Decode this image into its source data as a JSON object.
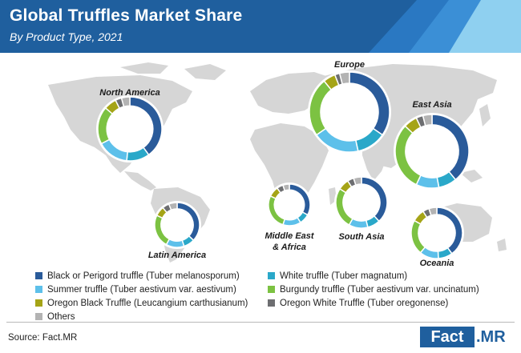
{
  "header": {
    "title": "Global Truffles Market Share",
    "subtitle": "By Product Type, 2021"
  },
  "chart_data": {
    "type": "pie",
    "variant": "donut",
    "title": "Global Truffles Market Share",
    "subtitle": "By Product Type, 2021",
    "categories": [
      "Black or Perigord truffle (Tuber melanosporum)",
      "White truffle (Tuber magnatum)",
      "Summer truffle (Tuber aestivum var. aestivum)",
      "Burgundy truffle (Tuber aestivum var. uncinatum)",
      "Oregon Black Truffle (Leucangium carthusianum)",
      "Oregon White Truffle (Tuber oregonense)",
      "Others"
    ],
    "colors": [
      "#2a5b9a",
      "#2aa8c9",
      "#5dc0ea",
      "#7cc242",
      "#a5a417",
      "#6d6e71",
      "#b3b3b3"
    ],
    "legend_position": "bottom",
    "regions": [
      {
        "name": "North America",
        "label_lines": [
          "North America"
        ],
        "values": [
          38,
          11,
          15,
          18,
          6,
          3,
          4
        ]
      },
      {
        "name": "Europe",
        "label_lines": [
          "Europe"
        ],
        "values": [
          35,
          12,
          19,
          24,
          5,
          2,
          4
        ]
      },
      {
        "name": "East Asia",
        "label_lines": [
          "East Asia"
        ],
        "values": [
          39,
          8,
          10,
          30,
          6,
          3,
          4
        ]
      },
      {
        "name": "Latin America",
        "label_lines": [
          "Latin America"
        ],
        "values": [
          37,
          8,
          13,
          24,
          7,
          5,
          6
        ]
      },
      {
        "name": "Middle East & Africa",
        "label_lines": [
          "Middle East",
          "& Africa"
        ],
        "values": [
          33,
          8,
          14,
          27,
          8,
          5,
          5
        ]
      },
      {
        "name": "South Asia",
        "label_lines": [
          "South Asia"
        ],
        "values": [
          38,
          8,
          12,
          26,
          7,
          4,
          5
        ]
      },
      {
        "name": "Oceania",
        "label_lines": [
          "Oceania"
        ],
        "values": [
          40,
          9,
          12,
          22,
          8,
          4,
          5
        ]
      }
    ]
  },
  "source": "Source: Fact.MR",
  "logo": {
    "part1": "Fact",
    "part2": ".MR"
  }
}
